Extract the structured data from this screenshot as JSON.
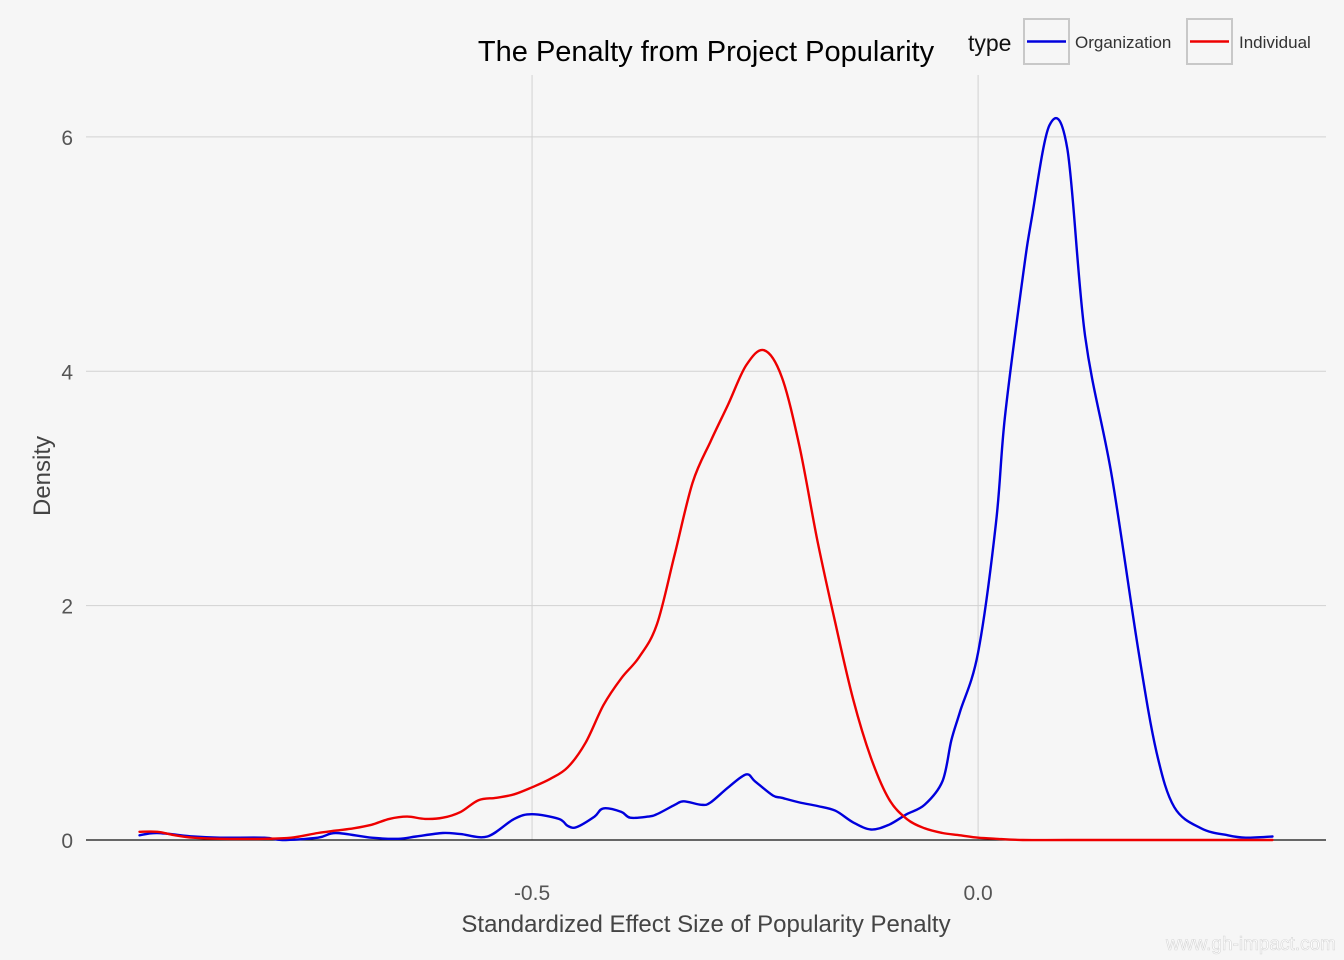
{
  "chart_data": {
    "type": "line",
    "title": "The Penalty from Project Popularity",
    "xlabel": "Standardized Effect Size of Popularity Penalty",
    "ylabel": "Density",
    "xlim": [
      -1.0,
      0.39
    ],
    "ylim": [
      0,
      6.4
    ],
    "x_ticks": [
      -0.5,
      0.0
    ],
    "x_tick_labels": [
      "-0.5",
      "0.0"
    ],
    "y_ticks": [
      0,
      2,
      4,
      6
    ],
    "y_tick_labels": [
      "0",
      "2",
      "4",
      "6"
    ],
    "grid": true,
    "legend": {
      "title": "type",
      "position": "top-right"
    },
    "series": [
      {
        "name": "Organization",
        "color": "#0000dd",
        "x": [
          -0.94,
          -0.92,
          -0.88,
          -0.85,
          -0.8,
          -0.78,
          -0.74,
          -0.72,
          -0.68,
          -0.65,
          -0.63,
          -0.6,
          -0.58,
          -0.55,
          -0.52,
          -0.5,
          -0.47,
          -0.46,
          -0.45,
          -0.43,
          -0.42,
          -0.4,
          -0.39,
          -0.37,
          -0.36,
          -0.34,
          -0.33,
          -0.31,
          -0.3,
          -0.28,
          -0.26,
          -0.25,
          -0.23,
          -0.22,
          -0.2,
          -0.18,
          -0.16,
          -0.14,
          -0.12,
          -0.1,
          -0.08,
          -0.06,
          -0.04,
          -0.03,
          -0.02,
          0.0,
          0.02,
          0.03,
          0.05,
          0.06,
          0.08,
          0.1,
          0.12,
          0.15,
          0.18,
          0.2,
          0.22,
          0.25,
          0.28,
          0.3,
          0.33
        ],
        "y": [
          0.04,
          0.06,
          0.03,
          0.02,
          0.02,
          0.0,
          0.02,
          0.06,
          0.02,
          0.01,
          0.03,
          0.06,
          0.05,
          0.03,
          0.18,
          0.22,
          0.18,
          0.12,
          0.11,
          0.2,
          0.27,
          0.24,
          0.19,
          0.2,
          0.22,
          0.3,
          0.33,
          0.3,
          0.32,
          0.45,
          0.56,
          0.5,
          0.38,
          0.36,
          0.32,
          0.29,
          0.25,
          0.15,
          0.09,
          0.13,
          0.22,
          0.3,
          0.5,
          0.85,
          1.1,
          1.6,
          2.7,
          3.6,
          4.8,
          5.3,
          6.1,
          5.9,
          4.3,
          3.1,
          1.6,
          0.75,
          0.28,
          0.1,
          0.04,
          0.02,
          0.03
        ]
      },
      {
        "name": "Individual",
        "color": "#ee0000",
        "x": [
          -0.94,
          -0.92,
          -0.9,
          -0.88,
          -0.85,
          -0.8,
          -0.77,
          -0.74,
          -0.72,
          -0.7,
          -0.68,
          -0.66,
          -0.64,
          -0.62,
          -0.6,
          -0.58,
          -0.56,
          -0.54,
          -0.52,
          -0.5,
          -0.48,
          -0.46,
          -0.44,
          -0.42,
          -0.4,
          -0.38,
          -0.36,
          -0.34,
          -0.32,
          -0.3,
          -0.28,
          -0.26,
          -0.24,
          -0.22,
          -0.2,
          -0.18,
          -0.16,
          -0.14,
          -0.12,
          -0.1,
          -0.08,
          -0.06,
          -0.04,
          -0.02,
          0.0,
          0.02,
          0.05,
          0.1,
          0.2,
          0.33
        ],
        "y": [
          0.07,
          0.07,
          0.04,
          0.02,
          0.01,
          0.01,
          0.02,
          0.06,
          0.08,
          0.1,
          0.13,
          0.18,
          0.2,
          0.18,
          0.19,
          0.24,
          0.34,
          0.36,
          0.39,
          0.45,
          0.52,
          0.62,
          0.83,
          1.15,
          1.38,
          1.56,
          1.84,
          2.44,
          3.05,
          3.4,
          3.72,
          4.05,
          4.18,
          3.95,
          3.35,
          2.55,
          1.85,
          1.2,
          0.7,
          0.35,
          0.18,
          0.1,
          0.06,
          0.04,
          0.02,
          0.01,
          0.0,
          0.0,
          0.0,
          0.0
        ]
      }
    ]
  },
  "watermark": "www.gh-impact.com"
}
